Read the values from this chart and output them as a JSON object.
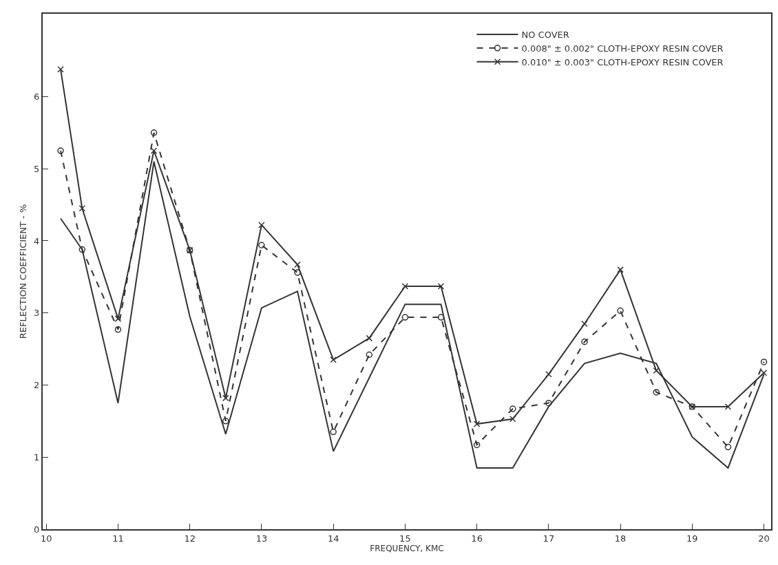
{
  "chart_data": {
    "type": "line",
    "xlabel": "FREQUENCY, KMC",
    "ylabel": "REFLECTION COEFFICIENT - %",
    "x": [
      10.2,
      10.5,
      11,
      11.5,
      12,
      12.5,
      13,
      13.5,
      14,
      14.5,
      15,
      15.5,
      16,
      16.5,
      17,
      17.5,
      18,
      18.5,
      19,
      19.5,
      20
    ],
    "series": [
      {
        "name": "NO COVER",
        "color": "#333333",
        "marker": "none",
        "line_style": "solid",
        "values": [
          4.31,
          3.88,
          1.75,
          5.1,
          2.95,
          1.32,
          3.07,
          3.3,
          1.08,
          2.1,
          3.12,
          3.12,
          0.85,
          0.85,
          1.7,
          2.3,
          2.44,
          2.3,
          1.28,
          0.85,
          2.15
        ]
      },
      {
        "name": "0.008\" ± 0.002\" CLOTH-EPOXY RESIN COVER",
        "color": "#333333",
        "marker": "circle",
        "line_style": "dashed",
        "values": [
          5.25,
          3.88,
          2.77,
          5.5,
          3.87,
          1.5,
          3.94,
          3.56,
          1.35,
          2.42,
          2.94,
          2.94,
          1.17,
          1.67,
          1.75,
          2.6,
          3.03,
          1.9,
          1.7,
          1.14,
          2.32
        ]
      },
      {
        "name": "0.010\" ± 0.003\" CLOTH-EPOXY RESIN COVER",
        "color": "#333333",
        "marker": "cross",
        "line_style": "solid",
        "values": [
          6.38,
          4.45,
          2.92,
          5.25,
          3.87,
          1.82,
          4.22,
          3.67,
          2.35,
          2.65,
          3.37,
          3.37,
          1.46,
          1.53,
          2.15,
          2.85,
          3.6,
          2.2,
          1.7,
          1.7,
          2.17
        ]
      }
    ],
    "xlim": [
      9.95,
      20.1
    ],
    "xticks": [
      10,
      11,
      12,
      13,
      14,
      15,
      16,
      17,
      18,
      19,
      20
    ],
    "ylim": [
      0,
      7.15
    ],
    "yticks": [
      0,
      1,
      2,
      3,
      4,
      5,
      6
    ],
    "grid": false,
    "legend": "top right"
  }
}
